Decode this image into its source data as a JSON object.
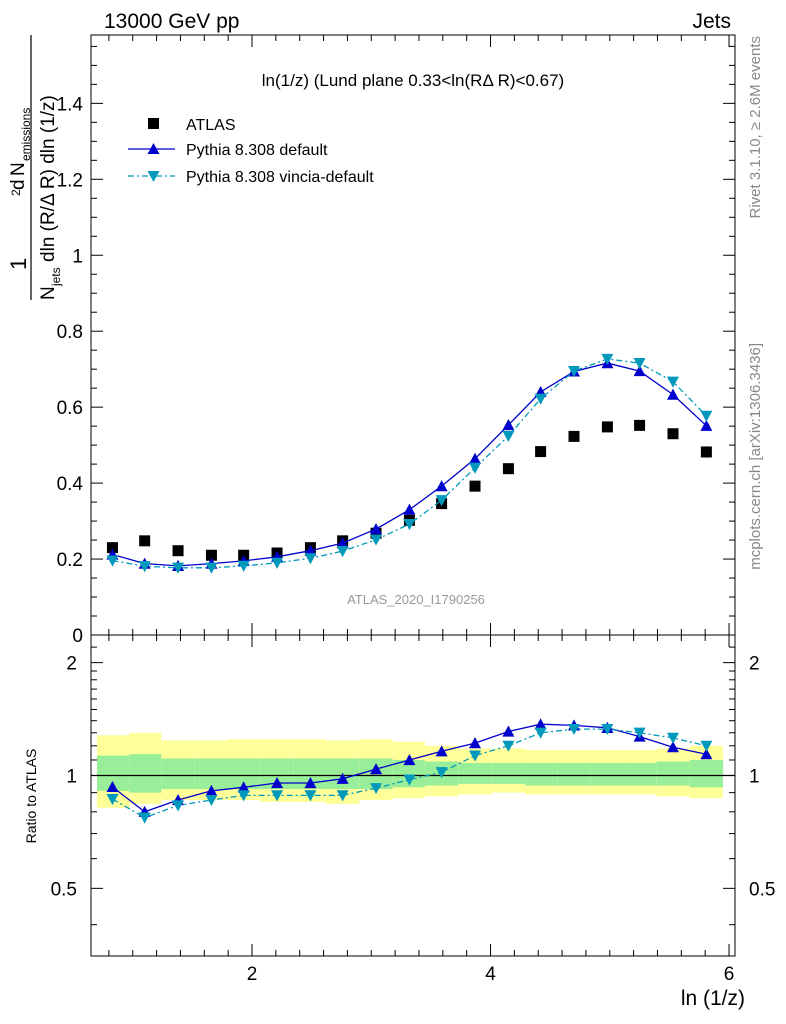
{
  "header": {
    "left": "13000 GeV pp",
    "right": "Jets"
  },
  "side_labels": {
    "rivet": "Rivet 3.1.10, ≥ 2.6M events",
    "mcplots": "mcplots.cern.ch [arXiv:1306.3436]"
  },
  "watermark": "ATLAS_2020_I1790256",
  "colors": {
    "data": "#000000",
    "pythia_default": "#0000cc",
    "pythia_vincia": "#0099bb",
    "band_inner": "#99ee99",
    "band_outer": "#ffff99",
    "ref_line": "#000000"
  },
  "chart_data": [
    {
      "type": "scatter",
      "panel": "main",
      "title": "ln(1/z) (Lund plane 0.33<ln(RΔ R)<0.67)",
      "ylabel": "1/N_jets d² N_emissions / dln (R/Δ R) dln (1/z)",
      "xlabel": "ln (1/z)",
      "xlim": [
        0.65,
        6.05
      ],
      "ylim": [
        0,
        1.58
      ],
      "x_ticks": [
        2,
        4,
        6
      ],
      "y_ticks": [
        0,
        0.2,
        0.4,
        0.6,
        0.8,
        1,
        1.2,
        1.4
      ],
      "y_tick_labels": [
        "0",
        "0.2",
        "0.4",
        "0.6",
        "0.8",
        "1",
        "1.2",
        "1.4"
      ],
      "legend": [
        "ATLAS",
        "Pythia 8.308 default",
        "Pythia 8.308 vincia-default"
      ],
      "legend_position": "top-left",
      "x": [
        0.83,
        1.1,
        1.38,
        1.66,
        1.93,
        2.21,
        2.49,
        2.76,
        3.04,
        3.32,
        3.59,
        3.87,
        4.15,
        4.42,
        4.7,
        4.98,
        5.25,
        5.53,
        5.81
      ],
      "series": [
        {
          "name": "ATLAS",
          "marker": "square",
          "values": [
            0.23,
            0.248,
            0.222,
            0.21,
            0.21,
            0.216,
            0.23,
            0.248,
            0.268,
            0.302,
            0.346,
            0.392,
            0.438,
            0.483,
            0.523,
            0.548,
            0.552,
            0.53,
            0.482
          ]
        },
        {
          "name": "Pythia 8.308 default",
          "marker": "triangle-up",
          "values": [
            0.212,
            0.188,
            0.182,
            0.188,
            0.195,
            0.206,
            0.222,
            0.242,
            0.279,
            0.33,
            0.392,
            0.464,
            0.553,
            0.64,
            0.694,
            0.716,
            0.695,
            0.633,
            0.551
          ]
        },
        {
          "name": "Pythia 8.308 vincia-default",
          "marker": "triangle-down",
          "values": [
            0.196,
            0.181,
            0.177,
            0.177,
            0.182,
            0.19,
            0.202,
            0.221,
            0.251,
            0.292,
            0.355,
            0.44,
            0.524,
            0.622,
            0.695,
            0.727,
            0.716,
            0.667,
            0.577
          ]
        }
      ]
    },
    {
      "type": "scatter",
      "panel": "ratio",
      "ylabel": "Ratio to ATLAS",
      "xlabel": "ln (1/z)",
      "xlim": [
        0.65,
        6.05
      ],
      "ylim": [
        0.33,
        2.37
      ],
      "x_ticks": [
        2,
        4,
        6
      ],
      "x_tick_labels": [
        "2",
        "4",
        "6"
      ],
      "y_ticks": [
        0.5,
        1,
        2
      ],
      "y_tick_labels": [
        "0.5",
        "1",
        "2"
      ],
      "x_edges": [
        0.7,
        0.97,
        1.24,
        1.52,
        1.79,
        2.07,
        2.35,
        2.62,
        2.9,
        3.18,
        3.45,
        3.73,
        4.01,
        4.29,
        4.56,
        4.84,
        5.12,
        5.39,
        5.67,
        5.95
      ],
      "band_outer": {
        "lo": [
          0.82,
          0.84,
          0.86,
          0.86,
          0.86,
          0.85,
          0.85,
          0.84,
          0.86,
          0.87,
          0.88,
          0.89,
          0.9,
          0.89,
          0.89,
          0.89,
          0.89,
          0.88,
          0.87
        ],
        "hi": [
          1.28,
          1.3,
          1.24,
          1.24,
          1.25,
          1.25,
          1.25,
          1.24,
          1.25,
          1.23,
          1.2,
          1.18,
          1.18,
          1.17,
          1.17,
          1.17,
          1.17,
          1.18,
          1.2
        ]
      },
      "band_inner": {
        "lo": [
          0.91,
          0.9,
          0.92,
          0.92,
          0.92,
          0.92,
          0.92,
          0.92,
          0.92,
          0.93,
          0.94,
          0.95,
          0.95,
          0.94,
          0.94,
          0.94,
          0.94,
          0.94,
          0.93
        ],
        "hi": [
          1.13,
          1.14,
          1.11,
          1.11,
          1.11,
          1.11,
          1.11,
          1.11,
          1.11,
          1.1,
          1.09,
          1.08,
          1.08,
          1.08,
          1.08,
          1.08,
          1.08,
          1.09,
          1.1
        ]
      },
      "x": [
        0.83,
        1.1,
        1.38,
        1.66,
        1.93,
        2.21,
        2.49,
        2.76,
        3.04,
        3.32,
        3.59,
        3.87,
        4.15,
        4.42,
        4.7,
        4.98,
        5.25,
        5.53,
        5.81
      ],
      "series": [
        {
          "name": "Pythia 8.308 default",
          "marker": "triangle-up",
          "values": [
            0.932,
            0.8,
            0.86,
            0.91,
            0.93,
            0.955,
            0.955,
            0.98,
            1.04,
            1.1,
            1.16,
            1.22,
            1.31,
            1.37,
            1.36,
            1.34,
            1.27,
            1.19,
            1.14
          ]
        },
        {
          "name": "Pythia 8.308 vincia-default",
          "marker": "triangle-down",
          "values": [
            0.865,
            0.772,
            0.832,
            0.86,
            0.885,
            0.885,
            0.885,
            0.885,
            0.925,
            0.975,
            1.02,
            1.13,
            1.2,
            1.3,
            1.33,
            1.33,
            1.3,
            1.26,
            1.2
          ]
        }
      ]
    }
  ]
}
